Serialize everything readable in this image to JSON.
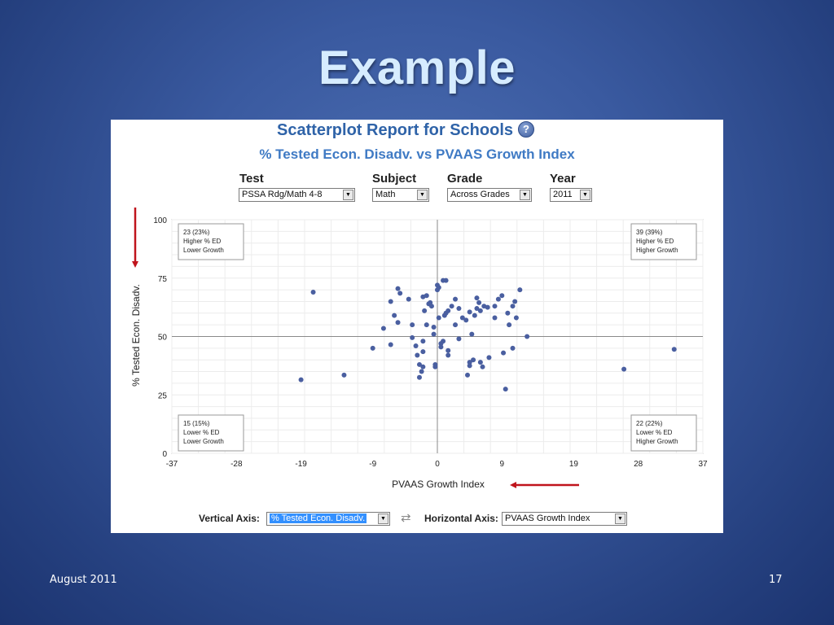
{
  "slide": {
    "title": "Example",
    "footer_date": "August 2011",
    "page_number": "17"
  },
  "report": {
    "title": "Scatterplot Report for Schools",
    "help_glyph": "?",
    "subtitle": "% Tested Econ. Disadv. vs PVAAS Growth Index",
    "controls": {
      "test": {
        "label": "Test",
        "value": "PSSA Rdg/Math 4-8"
      },
      "subject": {
        "label": "Subject",
        "value": "Math"
      },
      "grade": {
        "label": "Grade",
        "value": "Across Grades"
      },
      "year": {
        "label": "Year",
        "value": "2011"
      }
    },
    "bottom": {
      "vertical_label": "Vertical Axis:",
      "vertical_value": "% Tested Econ. Disadv.",
      "horizontal_label": "Horizontal Axis:",
      "horizontal_value": "PVAAS Growth Index"
    },
    "icons": {
      "dropdown": "chevron-down-icon",
      "swap": "swap-arrows-icon",
      "help": "help-icon",
      "arrow_color": "#c0141c"
    }
  },
  "chart_data": {
    "type": "scatter",
    "xlabel": "PVAAS Growth Index",
    "ylabel": "% Tested Econ. Disadv.",
    "xlim": [
      -37,
      37
    ],
    "ylim": [
      0,
      100
    ],
    "xticks": [
      "-37",
      "-28",
      "-19",
      "-9",
      "0",
      "9",
      "19",
      "28",
      "37"
    ],
    "xtick_values": [
      -37,
      -28,
      -19,
      -9,
      0,
      9,
      19,
      28,
      37
    ],
    "yticks": [
      "0",
      "25",
      "50",
      "75",
      "100"
    ],
    "ytick_values": [
      0,
      25,
      50,
      75,
      100
    ],
    "grid": true,
    "point_color": "#4a5fa0",
    "quadrants": [
      {
        "pos": "top-left",
        "lines": [
          "23 (23%)",
          "Higher % ED",
          "Lower Growth"
        ]
      },
      {
        "pos": "top-right",
        "lines": [
          "39 (39%)",
          "Higher % ED",
          "Higher Growth"
        ]
      },
      {
        "pos": "bottom-left",
        "lines": [
          "15 (15%)",
          "Lower % ED",
          "Lower Growth"
        ]
      },
      {
        "pos": "bottom-right",
        "lines": [
          "22 (22%)",
          "Lower % ED",
          "Higher Growth"
        ]
      }
    ],
    "points": [
      [
        -17.3,
        69
      ],
      [
        -19,
        31.5
      ],
      [
        -13,
        33.5
      ],
      [
        -9,
        45
      ],
      [
        -7.5,
        53.5
      ],
      [
        -6.5,
        46.5
      ],
      [
        -6.5,
        65
      ],
      [
        -6,
        59
      ],
      [
        -5.5,
        56
      ],
      [
        -5.5,
        70.5
      ],
      [
        -5.2,
        68.5
      ],
      [
        -4,
        66
      ],
      [
        -3.5,
        55
      ],
      [
        -3.5,
        49.5
      ],
      [
        -3,
        46
      ],
      [
        -2.8,
        42
      ],
      [
        -2.5,
        38
      ],
      [
        -2.5,
        32.5
      ],
      [
        -2.2,
        35
      ],
      [
        -2,
        37
      ],
      [
        -2,
        43.5
      ],
      [
        -2,
        48
      ],
      [
        -2,
        67
      ],
      [
        -1.8,
        61
      ],
      [
        -1.5,
        55
      ],
      [
        -1.5,
        67.5
      ],
      [
        -1.2,
        64
      ],
      [
        -1,
        64.5
      ],
      [
        -0.8,
        63
      ],
      [
        -0.5,
        51
      ],
      [
        -0.5,
        54
      ],
      [
        -0.3,
        38
      ],
      [
        -0.3,
        37
      ],
      [
        0,
        70
      ],
      [
        0,
        72
      ],
      [
        0.2,
        71
      ],
      [
        0.2,
        58
      ],
      [
        0.5,
        47
      ],
      [
        0.5,
        45.5
      ],
      [
        0.8,
        74
      ],
      [
        0.8,
        48
      ],
      [
        1,
        59
      ],
      [
        1.2,
        74
      ],
      [
        1.2,
        60
      ],
      [
        1.5,
        61
      ],
      [
        1.5,
        44
      ],
      [
        1.5,
        42
      ],
      [
        2,
        63
      ],
      [
        2.5,
        66
      ],
      [
        2.5,
        55
      ],
      [
        3,
        49
      ],
      [
        3,
        62
      ],
      [
        3.5,
        58
      ],
      [
        4,
        57
      ],
      [
        4.2,
        33.5
      ],
      [
        4.5,
        60.5
      ],
      [
        4.5,
        39
      ],
      [
        4.5,
        37.5
      ],
      [
        4.8,
        51
      ],
      [
        5,
        40
      ],
      [
        5.2,
        59
      ],
      [
        5.5,
        62
      ],
      [
        5.5,
        66.5
      ],
      [
        5.8,
        64.5
      ],
      [
        6,
        61
      ],
      [
        6,
        39
      ],
      [
        6.3,
        37
      ],
      [
        6.5,
        63
      ],
      [
        7,
        62.5
      ],
      [
        7.2,
        41
      ],
      [
        8,
        58
      ],
      [
        8,
        63
      ],
      [
        8.5,
        66
      ],
      [
        9,
        67.5
      ],
      [
        9.2,
        43
      ],
      [
        9.5,
        27.5
      ],
      [
        9.8,
        60
      ],
      [
        10,
        55
      ],
      [
        10.5,
        63
      ],
      [
        10.5,
        45
      ],
      [
        10.8,
        65
      ],
      [
        11,
        58
      ],
      [
        11.5,
        70
      ],
      [
        12.5,
        50
      ],
      [
        26,
        36
      ],
      [
        33,
        44.5
      ]
    ]
  }
}
